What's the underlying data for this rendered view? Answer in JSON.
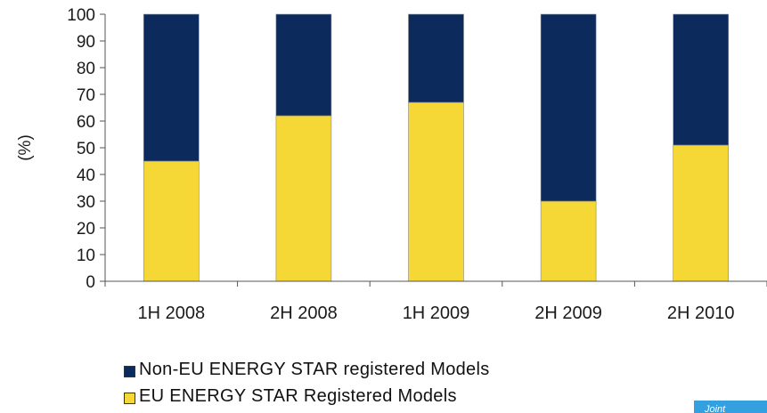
{
  "chart_data": {
    "type": "bar",
    "stacked": true,
    "categories": [
      "1H 2008",
      "2H 2008",
      "1H 2009",
      "2H 2009",
      "2H 2010"
    ],
    "series": [
      {
        "name": "EU ENERGY STAR Registered Models",
        "color": "#f5d835",
        "values": [
          45,
          62,
          67,
          30,
          51
        ]
      },
      {
        "name": "Non-EU ENERGY STAR registered Models",
        "color": "#0d2a5c",
        "values": [
          55,
          38,
          33,
          70,
          49
        ]
      }
    ],
    "ylabel": "(%)",
    "ylim": [
      0,
      100
    ],
    "yticks": [
      "0",
      "10",
      "20",
      "30",
      "40",
      "50",
      "60",
      "70",
      "80",
      "90",
      "100"
    ],
    "legend_position": "bottom",
    "grid": false
  },
  "legend": {
    "items": [
      {
        "label": "Non-EU ENERGY STAR registered Models",
        "color": "#0d2a5c"
      },
      {
        "label": "EU ENERGY STAR Registered Models",
        "color": "#f5d835"
      }
    ]
  },
  "corner_tag": {
    "text": "Joint"
  }
}
